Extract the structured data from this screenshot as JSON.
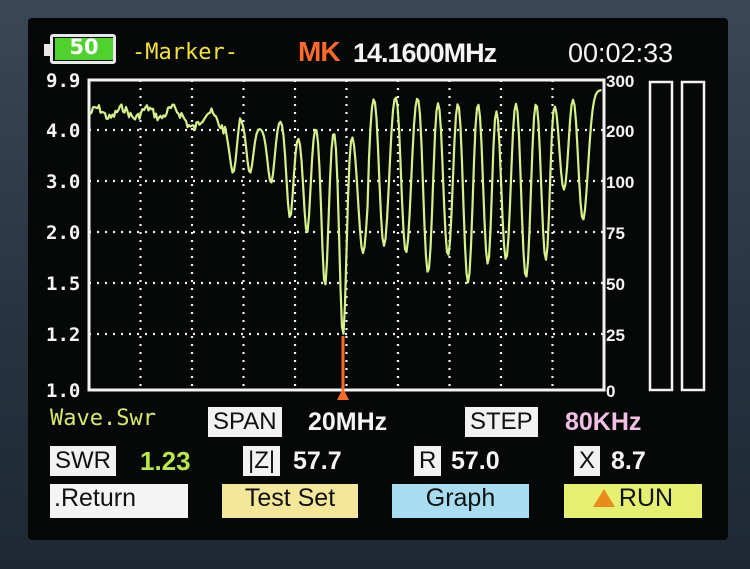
{
  "status_bar": {
    "battery_level": "50",
    "mode_title": "-Marker-",
    "marker_label": "MK",
    "marker_frequency": "14.1600MHz",
    "clock": "00:02:33"
  },
  "graph": {
    "left_ticks": [
      "9.9",
      "4.0",
      "3.0",
      "2.0",
      "1.5",
      "1.2",
      "1.0"
    ],
    "right_ticks": [
      "300",
      "200",
      "100",
      "75",
      "50",
      "25",
      "0"
    ],
    "trace_color": "#d6f08a",
    "marker_color": "#ff6a2a"
  },
  "info": {
    "display_mode": "Wave.Swr",
    "span_label": "SPAN",
    "span_value": "20MHz",
    "step_label": "STEP",
    "step_value": "80KHz",
    "swr_label": "SWR",
    "swr_value": "1.23",
    "z_label": "|Z|",
    "z_value": "57.7",
    "r_label": "R",
    "r_value": "57.0",
    "x_label": "X",
    "x_value": "8.7"
  },
  "buttons": {
    "return": ".Return",
    "test_set": "Test Set",
    "graph": "Graph",
    "run": "RUN"
  }
}
